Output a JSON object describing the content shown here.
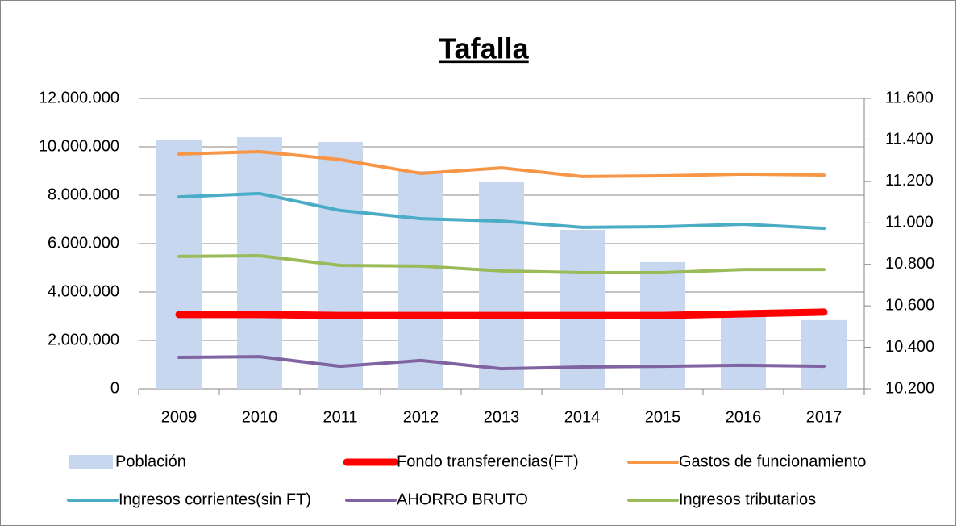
{
  "chart_data": {
    "type": "combo",
    "title": "Tafalla",
    "categories": [
      "2009",
      "2010",
      "2011",
      "2012",
      "2013",
      "2014",
      "2015",
      "2016",
      "2017"
    ],
    "ylim": [
      0,
      12000000
    ],
    "yticks": [
      0,
      {
        "value": 2000000,
        "label": "2.000.000"
      },
      {
        "value": 4000000,
        "label": "4.000.000"
      },
      {
        "value": 6000000,
        "label": "6.000.000"
      },
      {
        "value": 8000000,
        "label": "8.000.000"
      },
      {
        "value": 10000000,
        "label": "10.000.000"
      },
      {
        "value": 12000000,
        "label": "12.000.000"
      }
    ],
    "y2lim": [
      10200,
      11600
    ],
    "y2ticks": [
      {
        "value": 10200,
        "label": "10.200"
      },
      {
        "value": 10400,
        "label": "10.400"
      },
      {
        "value": 10600,
        "label": "10.600"
      },
      {
        "value": 10800,
        "label": "10.800"
      },
      {
        "value": 11000,
        "label": "11.000"
      },
      {
        "value": 11200,
        "label": "11.200"
      },
      {
        "value": 11400,
        "label": "11.400"
      },
      {
        "value": 11600,
        "label": "11.600"
      }
    ],
    "grid": true,
    "legend": "bottom",
    "series": [
      {
        "name": "Población",
        "type": "bar",
        "axis": "y2",
        "color": "#c6d7ef",
        "values": [
          11398,
          11413,
          11390,
          11250,
          11199,
          10966,
          10811,
          10558,
          10531
        ]
      },
      {
        "name": "Fondo transferencias(FT)",
        "type": "line",
        "color": "#ff0000",
        "width": 9,
        "values": [
          3070000,
          3070000,
          3030000,
          3030000,
          3030000,
          3030000,
          3030000,
          3100000,
          3170000
        ]
      },
      {
        "name": "Gastos de funcionamiento",
        "type": "line",
        "color": "#f79646",
        "width": 4,
        "values": [
          9700000,
          9800000,
          9470000,
          8900000,
          9130000,
          8770000,
          8800000,
          8870000,
          8830000
        ]
      },
      {
        "name": "Ingresos corrientes(sin FT)",
        "type": "line",
        "color": "#4bacc6",
        "width": 4,
        "values": [
          7930000,
          8070000,
          7370000,
          7030000,
          6930000,
          6670000,
          6700000,
          6800000,
          6630000
        ]
      },
      {
        "name": "AHORRO BRUTO",
        "type": "line",
        "color": "#8064a2",
        "width": 4,
        "values": [
          1300000,
          1330000,
          930000,
          1170000,
          830000,
          900000,
          930000,
          970000,
          930000
        ]
      },
      {
        "name": "Ingresos tributarios",
        "type": "line",
        "color": "#9bbb59",
        "width": 4,
        "values": [
          5470000,
          5500000,
          5100000,
          5070000,
          4870000,
          4800000,
          4800000,
          4930000,
          4930000
        ]
      }
    ]
  }
}
